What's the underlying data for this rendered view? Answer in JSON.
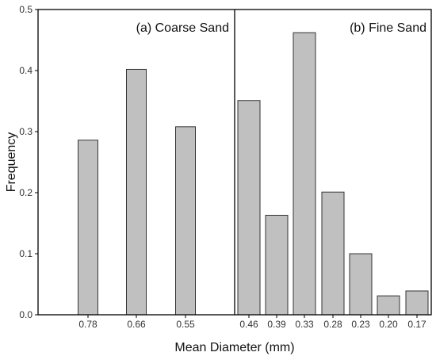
{
  "chart_data": {
    "type": "bar",
    "xlabel": "Mean Diameter (mm)",
    "ylabel": "Frequency",
    "ylim": [
      0,
      0.5
    ],
    "yticks": [
      "0.0",
      "0.1",
      "0.2",
      "0.3",
      "0.4",
      "0.5"
    ],
    "grid": false,
    "panels": [
      {
        "label": "(a) Coarse Sand",
        "categories": [
          "0.78",
          "0.66",
          "0.55"
        ],
        "values": [
          0.286,
          0.402,
          0.308
        ]
      },
      {
        "label": "(b) Fine Sand",
        "categories": [
          "0.46",
          "0.39",
          "0.33",
          "0.28",
          "0.23",
          "0.20",
          "0.17"
        ],
        "values": [
          0.351,
          0.163,
          0.462,
          0.201,
          0.1,
          0.031,
          0.039
        ]
      }
    ],
    "colors": {
      "bar_fill": "#c0c0c0",
      "bar_stroke": "#333333"
    }
  }
}
